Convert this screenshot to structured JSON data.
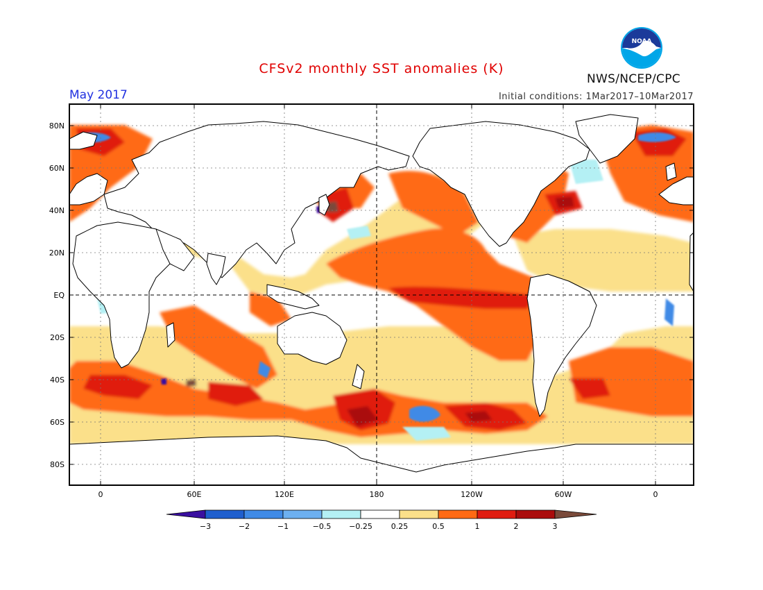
{
  "title": "CFSv2 monthly SST anomalies (K)",
  "valid_month": "May 2017",
  "initial_conditions": "Initial conditions: 1Mar2017–10Mar2017",
  "agency": "NWS/NCEP/CPC",
  "logo": {
    "text": "NOAA",
    "icon": "noaa-logo-icon"
  },
  "colors": {
    "title": "#e00000",
    "month": "#2030e0",
    "land": "#ffffff",
    "coast": "#000000"
  },
  "map": {
    "projection": "cylindrical equidistant",
    "lon_range": [
      -20,
      380
    ],
    "lat_range": [
      -90,
      90
    ],
    "lat_ticks": [
      "80N",
      "60N",
      "40N",
      "20N",
      "EQ",
      "20S",
      "40S",
      "60S",
      "80S"
    ],
    "lon_ticks": [
      "0",
      "60E",
      "120E",
      "180",
      "120W",
      "60W",
      "0"
    ],
    "gridlines": "dotted",
    "reference_lines": [
      "equator",
      "180"
    ]
  },
  "colorbar": {
    "labels": [
      "−3",
      "−2",
      "−1",
      "−0.5",
      "−0.25",
      "0.25",
      "0.5",
      "1",
      "2",
      "3"
    ],
    "bins": [
      {
        "color": "#3a0fa0"
      },
      {
        "color": "#1f5fce"
      },
      {
        "color": "#3f8ae6"
      },
      {
        "color": "#6db0f0"
      },
      {
        "color": "#b4f0f4"
      },
      {
        "color": "#ffffff"
      },
      {
        "color": "#fbe08a"
      },
      {
        "color": "#ff6a14"
      },
      {
        "color": "#e01c10"
      },
      {
        "color": "#aa0c0c"
      },
      {
        "color": "#7a4a3a"
      }
    ]
  }
}
